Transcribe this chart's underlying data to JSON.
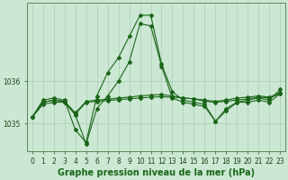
{
  "title": "Graphe pression niveau de la mer (hPa)",
  "xlabel_ticks": [
    "0",
    "1",
    "2",
    "3",
    "4",
    "5",
    "6",
    "7",
    "8",
    "9",
    "10",
    "11",
    "12",
    "13",
    "14",
    "15",
    "16",
    "17",
    "18",
    "19",
    "20",
    "21",
    "22",
    "23"
  ],
  "x": [
    0,
    1,
    2,
    3,
    4,
    5,
    6,
    7,
    8,
    9,
    10,
    11,
    12,
    13,
    14,
    15,
    16,
    17,
    18,
    19,
    20,
    21,
    22,
    23
  ],
  "line1": [
    1035.15,
    1035.55,
    1035.6,
    1035.55,
    1034.85,
    1034.55,
    1035.65,
    1036.2,
    1036.55,
    1037.05,
    1037.55,
    1037.55,
    1036.4,
    1035.75,
    1035.55,
    1035.5,
    1035.45,
    1035.05,
    1035.35,
    1035.5,
    1035.55,
    1035.6,
    1035.55,
    1035.8
  ],
  "line2": [
    1035.15,
    1035.45,
    1035.5,
    1035.5,
    1035.2,
    1034.52,
    1035.35,
    1035.65,
    1036.0,
    1036.45,
    1037.35,
    1037.3,
    1036.35,
    1035.6,
    1035.5,
    1035.45,
    1035.4,
    1035.05,
    1035.3,
    1035.5,
    1035.5,
    1035.55,
    1035.5,
    1035.7
  ],
  "line3": [
    1035.15,
    1035.5,
    1035.55,
    1035.52,
    1035.25,
    1035.52,
    1035.55,
    1035.57,
    1035.6,
    1035.62,
    1035.65,
    1035.67,
    1035.68,
    1035.65,
    1035.6,
    1035.58,
    1035.55,
    1035.52,
    1035.55,
    1035.6,
    1035.62,
    1035.65,
    1035.62,
    1035.72
  ],
  "line4": [
    1035.15,
    1035.5,
    1035.55,
    1035.52,
    1035.22,
    1035.5,
    1035.52,
    1035.54,
    1035.56,
    1035.58,
    1035.6,
    1035.62,
    1035.63,
    1035.62,
    1035.6,
    1035.58,
    1035.52,
    1035.5,
    1035.52,
    1035.55,
    1035.58,
    1035.62,
    1035.6,
    1035.7
  ],
  "bg_color": "#cce8d4",
  "grid_color": "#aaccb4",
  "line_color": "#1a6618",
  "ylim_min": 1034.35,
  "ylim_max": 1037.85,
  "yticks": [
    1035.0,
    1036.0
  ],
  "title_fontsize": 7.0,
  "tick_fontsize": 5.5
}
